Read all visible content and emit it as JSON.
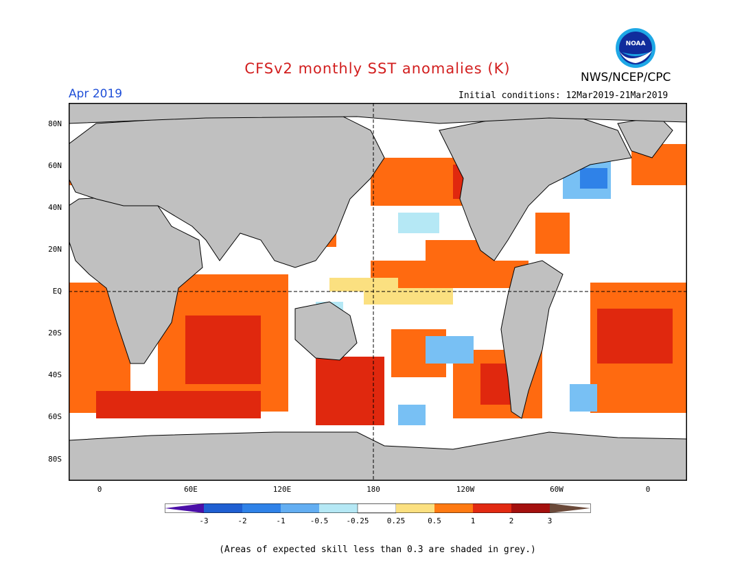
{
  "header": {
    "title": "CFSv2 monthly SST anomalies (K)",
    "month": "Apr 2019",
    "initial_conditions": "Initial conditions: 12Mar2019-21Mar2019",
    "agency": "NWS/NCEP/CPC",
    "logo_text": "NOAA"
  },
  "axes": {
    "lat_labels": [
      "80N",
      "60N",
      "40N",
      "20N",
      "EQ",
      "20S",
      "40S",
      "60S",
      "80S"
    ],
    "lon_labels": [
      "0",
      "60E",
      "120E",
      "180",
      "120W",
      "60W",
      "0"
    ]
  },
  "colorbar": {
    "labels": [
      "-3",
      "-2",
      "-1",
      "-0.5",
      "-0.25",
      "0.25",
      "0.5",
      "1",
      "2",
      "3"
    ],
    "colors": [
      "#4b0fa8",
      "#1f5fd2",
      "#2f82e8",
      "#63aef2",
      "#b5e8f5",
      "#ffffff",
      "#fbe080",
      "#ff7a12",
      "#e22a12",
      "#a4100e",
      "#6b4a3a"
    ]
  },
  "colors": {
    "land": "#c0c0c0",
    "neutral": "#ffffff",
    "warm": "#ff6a10",
    "hot": "#e0280e",
    "cool": "#78c0f4",
    "title": "#d21e1e",
    "month": "#1f4fd8"
  },
  "footnote": "(Areas of expected skill less than 0.3 are shaded in grey.)"
}
